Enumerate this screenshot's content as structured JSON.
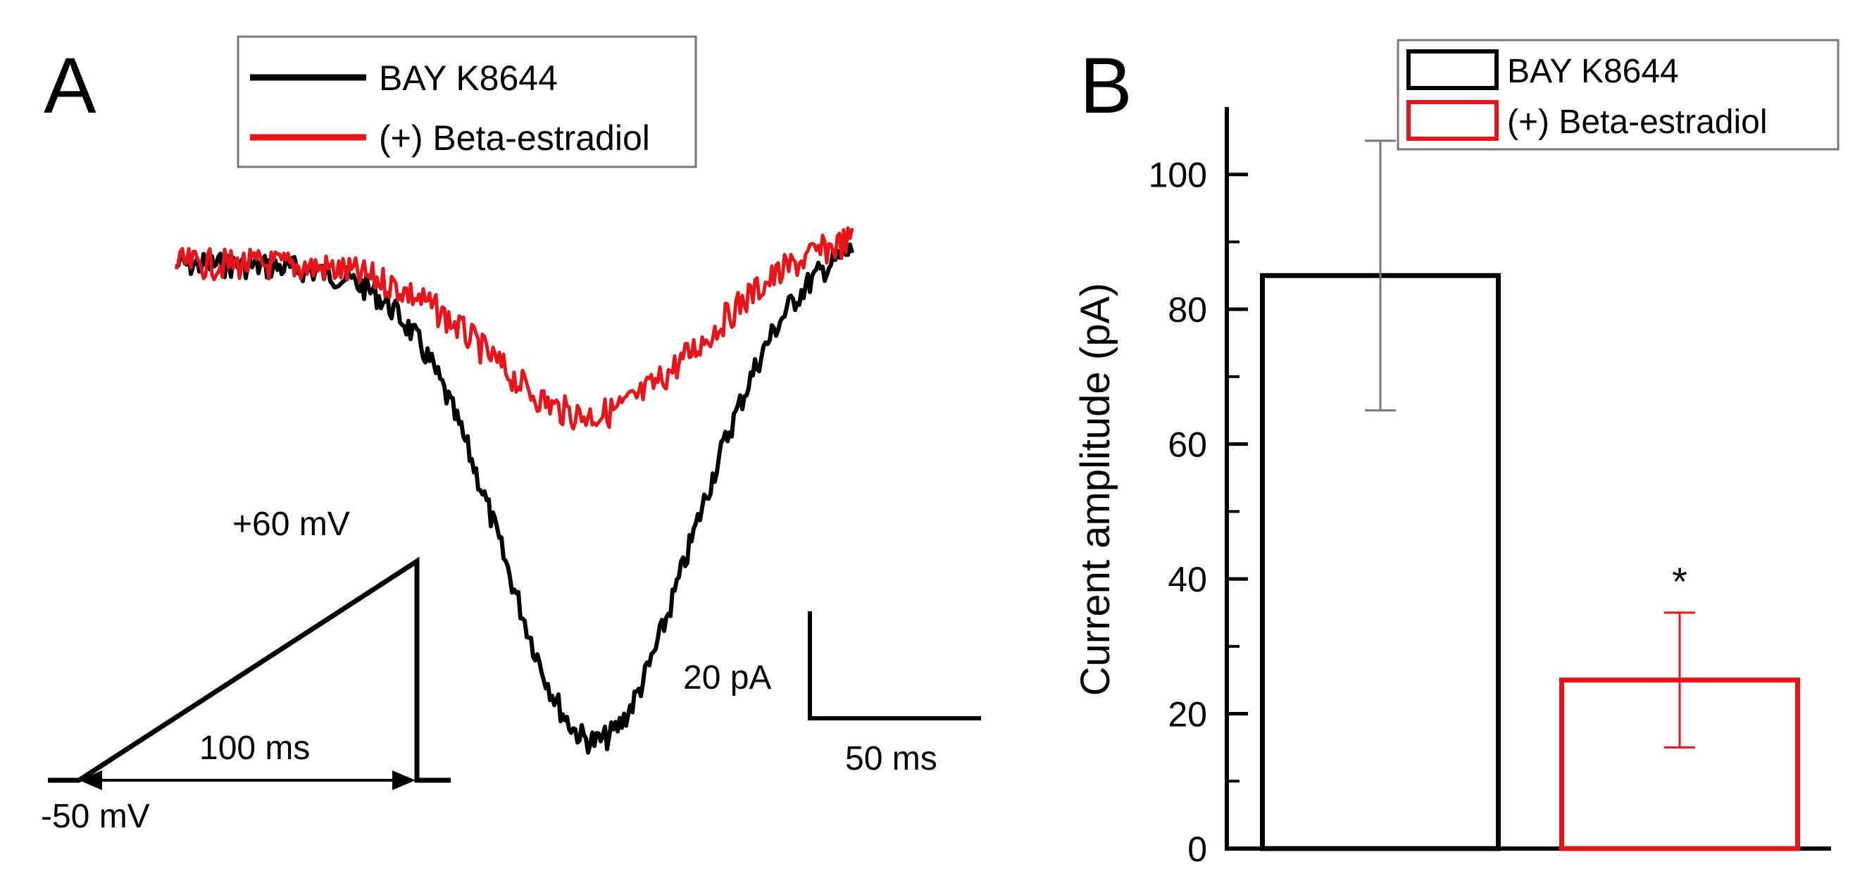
{
  "panel_a": {
    "label": "A",
    "legend": [
      {
        "label": "BAY K8644",
        "color": "#000000"
      },
      {
        "label": "(+) Beta-estradiol",
        "color": "#e8141a"
      }
    ],
    "protocol": {
      "peak_label": "+60 mV",
      "duration_label": "100 ms",
      "holding_label": "-50 mV"
    },
    "scale_bar": {
      "current_label": "20 pA",
      "time_label": "50 ms"
    }
  },
  "chart_data": [
    {
      "type": "bar",
      "panel": "B",
      "categories": [
        "BAY K8644",
        "(+) Beta-estradiol"
      ],
      "values": [
        85,
        25
      ],
      "errors": [
        20,
        10
      ],
      "colors": [
        "#000000",
        "#e8141a"
      ],
      "significance": [
        "",
        "*"
      ],
      "ylabel": "Current amplitude (pA)",
      "xlabel": "",
      "ylim": [
        0,
        110
      ],
      "yticks": [
        0,
        20,
        40,
        60,
        80,
        100
      ],
      "legend_placement": "top-right",
      "grid": false
    }
  ]
}
